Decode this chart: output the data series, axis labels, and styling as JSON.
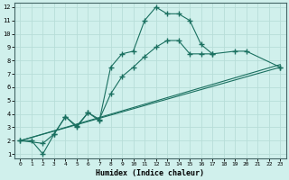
{
  "xlabel": "Humidex (Indice chaleur)",
  "bg_color": "#d0f0ec",
  "grid_color": "#b8ddd8",
  "line_color": "#1a7060",
  "xlim": [
    -0.5,
    23.5
  ],
  "ylim": [
    0.7,
    12.3
  ],
  "xticks": [
    0,
    1,
    2,
    3,
    4,
    5,
    6,
    7,
    8,
    9,
    10,
    11,
    12,
    13,
    14,
    15,
    16,
    17,
    18,
    19,
    20,
    21,
    22,
    23
  ],
  "yticks": [
    1,
    2,
    3,
    4,
    5,
    6,
    7,
    8,
    9,
    10,
    11,
    12
  ],
  "line1_x": [
    0,
    1,
    2,
    3,
    4,
    5,
    6,
    7,
    8,
    9,
    10,
    11,
    12,
    13,
    14,
    15,
    16,
    17,
    23
  ],
  "line1_y": [
    2.0,
    2.0,
    1.0,
    2.5,
    3.8,
    3.0,
    4.1,
    3.5,
    7.5,
    8.5,
    8.7,
    11.0,
    12.0,
    11.5,
    11.5,
    11.0,
    9.2,
    8.5,
    7.5
  ],
  "line1_connected": false,
  "line1_seg1_end": 17,
  "line2_x": [
    0,
    2,
    3,
    4,
    5,
    6,
    7,
    8,
    9,
    10,
    11,
    12,
    13,
    14,
    15,
    16,
    17,
    19,
    20,
    23
  ],
  "line2_y": [
    2.0,
    1.8,
    2.5,
    3.8,
    3.1,
    4.1,
    3.6,
    5.5,
    6.8,
    7.5,
    8.3,
    9.0,
    9.5,
    9.5,
    8.5,
    8.5,
    8.5,
    8.7,
    8.7,
    7.5
  ],
  "line3_x": [
    0,
    23
  ],
  "line3_y": [
    2.0,
    7.5
  ],
  "line4_x": [
    0,
    23
  ],
  "line4_y": [
    2.0,
    7.5
  ]
}
